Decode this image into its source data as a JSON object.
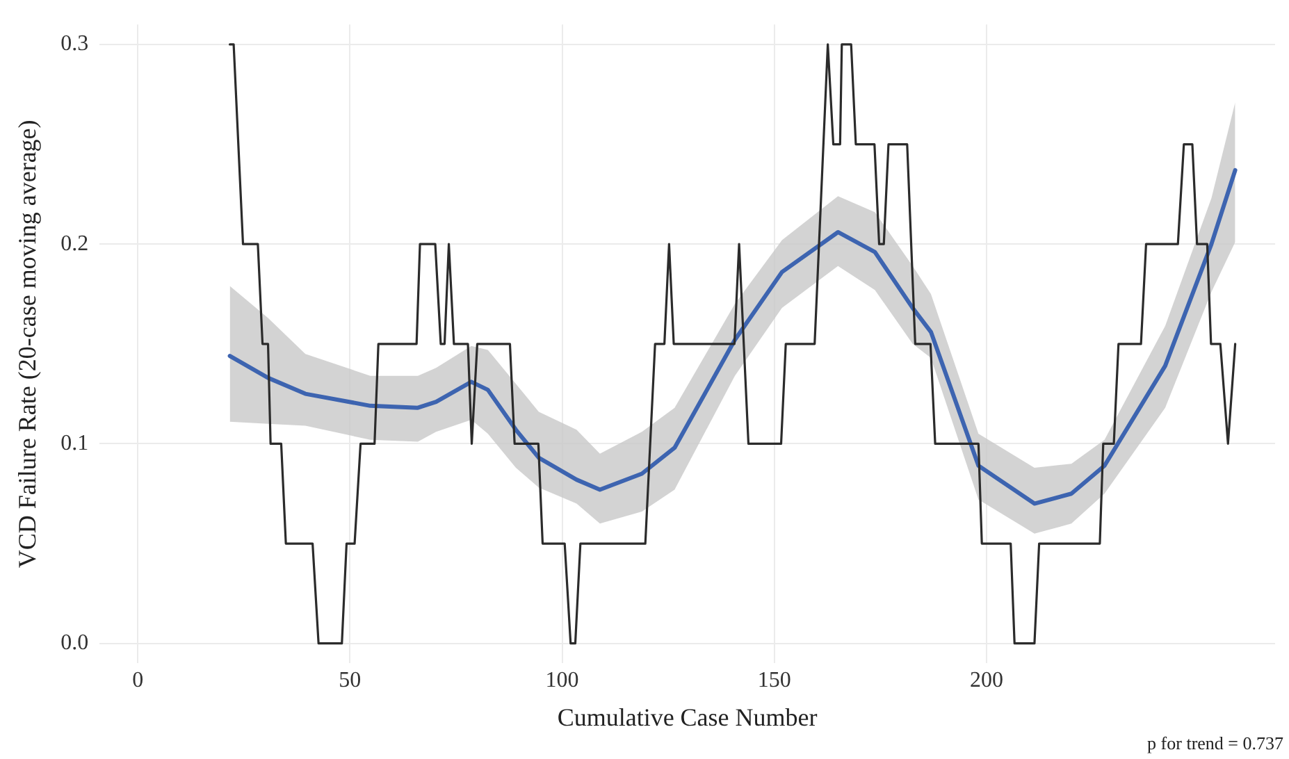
{
  "chart_data": {
    "type": "line",
    "xlabel": "Cumulative Case Number",
    "ylabel": "VCD Failure Rate (20-case moving average)",
    "xlim": [
      -9,
      268
    ],
    "xticks": [
      0,
      50,
      100,
      150,
      200
    ],
    "ylim": [
      -0.01,
      0.31
    ],
    "yticks": [
      {
        "value": 0,
        "label": "0.0"
      },
      {
        "value": 0.1,
        "label": "0.1"
      },
      {
        "value": 0.2,
        "label": "0.2"
      },
      {
        "value": 0.3,
        "label": "0.3"
      }
    ],
    "grid": true,
    "legend": false,
    "marker": "none",
    "line_style": "solid",
    "annotations": [
      "p for trend = 0.737"
    ],
    "series": [
      {
        "color": "#2b2b2b",
        "x": [
          21.7,
          22.6,
          24.8,
          28.3,
          29.4,
          30.7,
          31.3,
          33.8,
          34.9,
          41.2,
          42.6,
          48.1,
          49.2,
          51.1,
          52.5,
          55.8,
          56.7,
          65.7,
          66.5,
          70.1,
          71.4,
          72.3,
          73.3,
          74.5,
          77.8,
          78.7,
          80.0,
          87.7,
          88.8,
          94.4,
          95.4,
          100.6,
          102.0,
          103.1,
          104.3,
          119.6,
          121.9,
          124.1,
          125.2,
          126.3,
          140.6,
          141.7,
          143.9,
          151.6,
          152.7,
          159.5,
          162.6,
          163.9,
          165.5,
          165.9,
          168.1,
          169.2,
          173.6,
          174.7,
          175.8,
          176.9,
          181.3,
          183.2,
          186.8,
          187.9,
          198.1,
          198.9,
          205.7,
          206.6,
          211.3,
          212.4,
          226.7,
          227.5,
          230.0,
          231.1,
          236.4,
          237.6,
          245.1,
          246.5,
          248.5,
          249.6,
          252.0,
          252.9,
          255.1,
          256.9,
          258.6
        ],
        "values": [
          0.3,
          0.3,
          0.2,
          0.2,
          0.15,
          0.15,
          0.1,
          0.1,
          0.05,
          0.05,
          0,
          0,
          0.05,
          0.05,
          0.1,
          0.1,
          0.15,
          0.15,
          0.2,
          0.2,
          0.15,
          0.15,
          0.2,
          0.15,
          0.15,
          0.1,
          0.15,
          0.15,
          0.1,
          0.1,
          0.05,
          0.05,
          0,
          0,
          0.05,
          0.05,
          0.15,
          0.15,
          0.2,
          0.15,
          0.15,
          0.2,
          0.1,
          0.1,
          0.15,
          0.15,
          0.3,
          0.25,
          0.25,
          0.3,
          0.3,
          0.25,
          0.25,
          0.2,
          0.2,
          0.25,
          0.25,
          0.15,
          0.15,
          0.1,
          0.1,
          0.05,
          0.05,
          0,
          0,
          0.05,
          0.05,
          0.1,
          0.1,
          0.15,
          0.15,
          0.2,
          0.2,
          0.25,
          0.25,
          0.2,
          0.2,
          0.15,
          0.15,
          0.1,
          0.15
        ]
      },
      {
        "color": "#3d64b0",
        "x": [
          21.7,
          30.7,
          39.5,
          54.8,
          66.0,
          70.3,
          78.6,
          82.5,
          89.1,
          94.5,
          103.4,
          108.9,
          118.8,
          126.5,
          140.7,
          151.8,
          165.0,
          173.7,
          182.6,
          186.9,
          198.1,
          211.3,
          220.0,
          227.8,
          242.1,
          253.0,
          258.6
        ],
        "values": [
          0.144,
          0.133,
          0.125,
          0.119,
          0.118,
          0.121,
          0.131,
          0.127,
          0.107,
          0.093,
          0.082,
          0.077,
          0.085,
          0.098,
          0.152,
          0.186,
          0.206,
          0.196,
          0.168,
          0.156,
          0.089,
          0.07,
          0.075,
          0.089,
          0.139,
          0.2,
          0.237
        ],
        "lower": [
          0.111,
          0.11,
          0.109,
          0.102,
          0.101,
          0.106,
          0.112,
          0.105,
          0.088,
          0.078,
          0.07,
          0.06,
          0.066,
          0.077,
          0.134,
          0.168,
          0.189,
          0.177,
          0.15,
          0.143,
          0.072,
          0.055,
          0.06,
          0.075,
          0.118,
          0.176,
          0.201
        ],
        "upper": [
          0.179,
          0.163,
          0.145,
          0.134,
          0.134,
          0.138,
          0.149,
          0.147,
          0.13,
          0.116,
          0.107,
          0.095,
          0.106,
          0.118,
          0.17,
          0.202,
          0.224,
          0.216,
          0.189,
          0.175,
          0.105,
          0.088,
          0.09,
          0.102,
          0.159,
          0.223,
          0.271
        ]
      }
    ]
  }
}
